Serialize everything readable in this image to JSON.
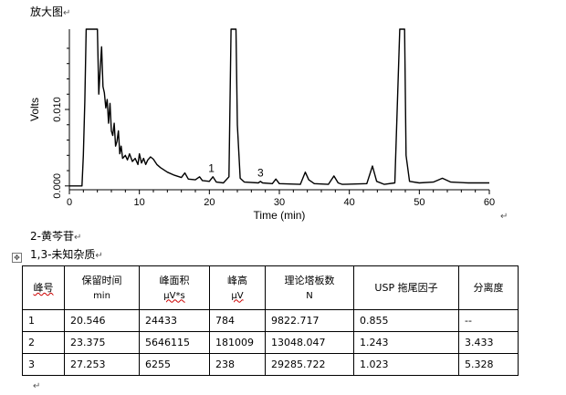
{
  "doc": {
    "caption_top": "放大图",
    "compound_2": "2-黄芩苷",
    "compound_13": "1,3-未知杂质",
    "para_mark": "↵"
  },
  "chart_data": {
    "type": "line",
    "xlabel": "Time (min)",
    "ylabel": "Volts",
    "xlim": [
      0,
      60
    ],
    "ylim": [
      -0.0005,
      0.0205
    ],
    "xticks": [
      0,
      10,
      20,
      30,
      40,
      50,
      60
    ],
    "yticks": [
      0.0,
      0.01
    ],
    "ytick_labels": [
      "0.000",
      "0.010"
    ],
    "color": "#000000",
    "points": [
      [
        0,
        0
      ],
      [
        1.8,
        0
      ],
      [
        2.0,
        0.004
      ],
      [
        2.2,
        0.011
      ],
      [
        2.4,
        0.0205
      ],
      [
        4.0,
        0.0205
      ],
      [
        4.2,
        0.012
      ],
      [
        4.4,
        0.0152
      ],
      [
        4.6,
        0.0182
      ],
      [
        4.8,
        0.013
      ],
      [
        5.0,
        0.0122
      ],
      [
        5.2,
        0.0102
      ],
      [
        5.4,
        0.0113
      ],
      [
        5.6,
        0.0082
      ],
      [
        5.8,
        0.0108
      ],
      [
        6.0,
        0.0072
      ],
      [
        6.2,
        0.0066
      ],
      [
        6.4,
        0.0082
      ],
      [
        6.6,
        0.0052
      ],
      [
        6.8,
        0.0058
      ],
      [
        7.0,
        0.0072
      ],
      [
        7.2,
        0.0042
      ],
      [
        7.4,
        0.0052
      ],
      [
        7.6,
        0.0036
      ],
      [
        8.0,
        0.004
      ],
      [
        8.3,
        0.0034
      ],
      [
        8.6,
        0.0042
      ],
      [
        9.0,
        0.0032
      ],
      [
        9.4,
        0.0036
      ],
      [
        9.8,
        0.0028
      ],
      [
        10.0,
        0.0042
      ],
      [
        10.3,
        0.003
      ],
      [
        10.6,
        0.0036
      ],
      [
        10.9,
        0.0028
      ],
      [
        11.2,
        0.0034
      ],
      [
        11.6,
        0.0038
      ],
      [
        12.0,
        0.0035
      ],
      [
        12.5,
        0.0028
      ],
      [
        13.0,
        0.0024
      ],
      [
        14.0,
        0.0018
      ],
      [
        15.0,
        0.0014
      ],
      [
        16.0,
        0.0011
      ],
      [
        16.5,
        0.0017
      ],
      [
        17.0,
        0.0009
      ],
      [
        18.0,
        0.0008
      ],
      [
        18.6,
        0.0012
      ],
      [
        19.0,
        0.0007
      ],
      [
        20.0,
        0.0006
      ],
      [
        20.5,
        0.0012
      ],
      [
        21.0,
        0.0005
      ],
      [
        22.0,
        0.0004
      ],
      [
        22.8,
        0.0012
      ],
      [
        23.1,
        0.0205
      ],
      [
        23.8,
        0.0205
      ],
      [
        24.0,
        0.008
      ],
      [
        24.4,
        0.001
      ],
      [
        25.0,
        0.0005
      ],
      [
        27.0,
        0.0004
      ],
      [
        27.3,
        0.0006
      ],
      [
        27.6,
        0.0004
      ],
      [
        29.0,
        0.0003
      ],
      [
        29.5,
        0.0009
      ],
      [
        30.0,
        0.0003
      ],
      [
        33.0,
        0.0002
      ],
      [
        33.7,
        0.0018
      ],
      [
        34.2,
        0.0008
      ],
      [
        35.0,
        0.0003
      ],
      [
        37.0,
        0.0002
      ],
      [
        37.8,
        0.0013
      ],
      [
        38.4,
        0.0004
      ],
      [
        39.0,
        0.0002
      ],
      [
        42.5,
        0.0003
      ],
      [
        43.3,
        0.0026
      ],
      [
        43.9,
        0.0006
      ],
      [
        45.0,
        0.0002
      ],
      [
        46.5,
        0.0004
      ],
      [
        47.2,
        0.0205
      ],
      [
        47.9,
        0.0205
      ],
      [
        48.1,
        0.004
      ],
      [
        48.6,
        0.0006
      ],
      [
        50.0,
        0.0004
      ],
      [
        52.0,
        0.0005
      ],
      [
        53.3,
        0.001
      ],
      [
        54.5,
        0.0005
      ],
      [
        57.0,
        0.0004
      ],
      [
        60,
        0.0004
      ]
    ],
    "annotations": [
      {
        "text": "1",
        "x": 20.3,
        "y": 0.0011
      },
      {
        "text": "3",
        "x": 27.3,
        "y": 0.0005
      }
    ]
  },
  "table": {
    "header": [
      {
        "l1": "峰号",
        "l2": ""
      },
      {
        "l1": "保留时间",
        "l2": "min"
      },
      {
        "l1": "峰面积",
        "l2": "μV*s"
      },
      {
        "l1": "峰高",
        "l2": "μV"
      },
      {
        "l1": "理论塔板数",
        "l2": "N"
      },
      {
        "l1": "USP 拖尾因子",
        "l2": ""
      },
      {
        "l1": "分离度",
        "l2": ""
      }
    ],
    "rows": [
      [
        "1",
        "20.546",
        "24433",
        "784",
        "9822.717",
        "0.855",
        "--"
      ],
      [
        "2",
        "23.375",
        "5646115",
        "181009",
        "13048.047",
        "1.243",
        "3.433"
      ],
      [
        "3",
        "27.253",
        "6255",
        "238",
        "29285.722",
        "1.023",
        "5.328"
      ]
    ]
  }
}
